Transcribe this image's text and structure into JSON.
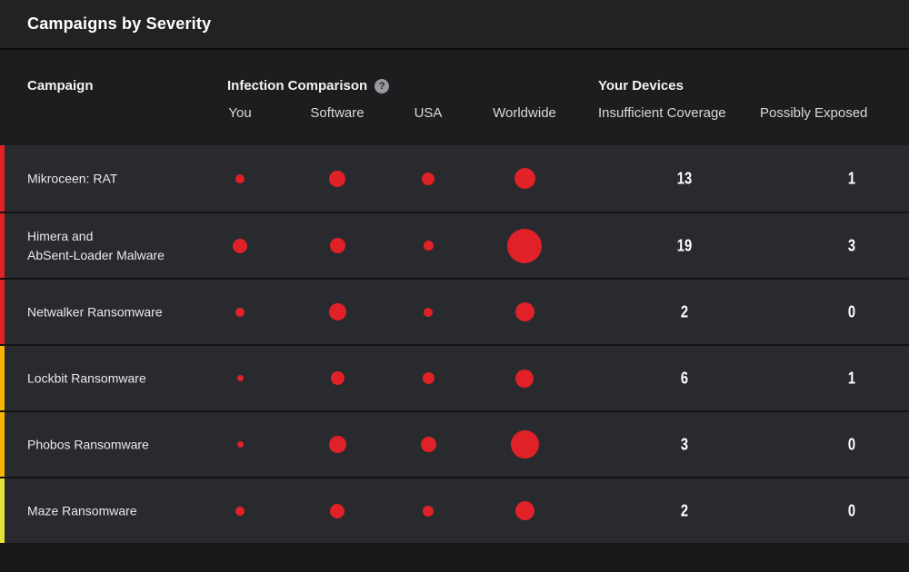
{
  "title": "Campaigns by Severity",
  "colors": {
    "dot": "#e02127",
    "severity_critical": "#df2226",
    "severity_high": "#f6b500",
    "severity_medium": "#e4e238"
  },
  "header": {
    "campaign": "Campaign",
    "infection_comparison": "Infection Comparison",
    "help_icon": "?",
    "subcolumns": {
      "you": "You",
      "software": "Software",
      "usa": "USA",
      "worldwide": "Worldwide"
    },
    "your_devices": "Your Devices",
    "insufficient_coverage": "Insufficient Coverage",
    "possibly_exposed": "Possibly Exposed"
  },
  "rows": [
    {
      "campaign": "Mikroceen: RAT",
      "severity_color": "#df2226",
      "dots": {
        "you": 10,
        "software": 18,
        "usa": 14,
        "worldwide": 23
      },
      "insufficient_coverage": "13",
      "possibly_exposed": "1"
    },
    {
      "campaign": "Himera and\nAbSent-Loader Malware",
      "severity_color": "#df2226",
      "dots": {
        "you": 16,
        "software": 17,
        "usa": 11,
        "worldwide": 38
      },
      "insufficient_coverage": "19",
      "possibly_exposed": "3"
    },
    {
      "campaign": "Netwalker Ransomware",
      "severity_color": "#df2226",
      "dots": {
        "you": 10,
        "software": 19,
        "usa": 10,
        "worldwide": 21
      },
      "insufficient_coverage": "2",
      "possibly_exposed": "0"
    },
    {
      "campaign": "Lockbit Ransomware",
      "severity_color": "#f6b500",
      "dots": {
        "you": 7,
        "software": 15,
        "usa": 13,
        "worldwide": 20
      },
      "insufficient_coverage": "6",
      "possibly_exposed": "1"
    },
    {
      "campaign": "Phobos Ransomware",
      "severity_color": "#f6b500",
      "dots": {
        "you": 7,
        "software": 19,
        "usa": 17,
        "worldwide": 31
      },
      "insufficient_coverage": "3",
      "possibly_exposed": "0"
    },
    {
      "campaign": "Maze Ransomware",
      "severity_color": "#e4e238",
      "dots": {
        "you": 10,
        "software": 16,
        "usa": 12,
        "worldwide": 21
      },
      "insufficient_coverage": "2",
      "possibly_exposed": "0"
    }
  ]
}
